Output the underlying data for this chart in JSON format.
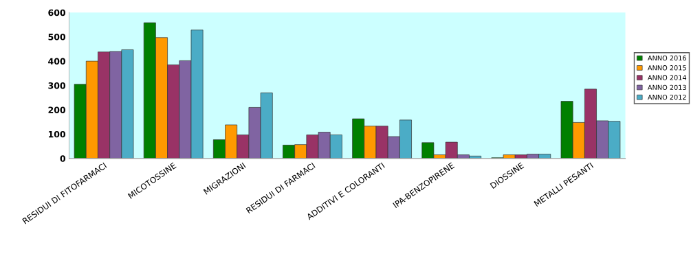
{
  "chart_data": {
    "type": "bar",
    "categories": [
      "RESIDUI DI FITOFARMACI",
      "MICOTOSSINE",
      "MIGRAZIONI",
      "RESIDUI DI FARMACI",
      "ADDITIVI E COLORANTI",
      "IPA-BENZOPIRENE",
      "DIOSSINE",
      "METALLI PESANTI"
    ],
    "series": [
      {
        "name": "ANNO 2016",
        "color": "#008000",
        "values": [
          305,
          558,
          77,
          55,
          163,
          65,
          3,
          235
        ]
      },
      {
        "name": "ANNO 2015",
        "color": "#ff9900",
        "values": [
          400,
          497,
          138,
          57,
          133,
          15,
          15,
          148
        ]
      },
      {
        "name": "ANNO 2014",
        "color": "#993366",
        "values": [
          438,
          385,
          97,
          97,
          133,
          67,
          15,
          285
        ]
      },
      {
        "name": "ANNO 2013",
        "color": "#8064a2",
        "values": [
          440,
          402,
          210,
          108,
          90,
          15,
          18,
          155
        ]
      },
      {
        "name": "ANNO 2012",
        "color": "#4bacc6",
        "values": [
          447,
          528,
          270,
          97,
          158,
          10,
          18,
          153
        ]
      }
    ],
    "ylim": [
      0,
      600
    ],
    "yticks": [
      0,
      100,
      200,
      300,
      400,
      500,
      600
    ],
    "grid": false,
    "legend": "right"
  }
}
